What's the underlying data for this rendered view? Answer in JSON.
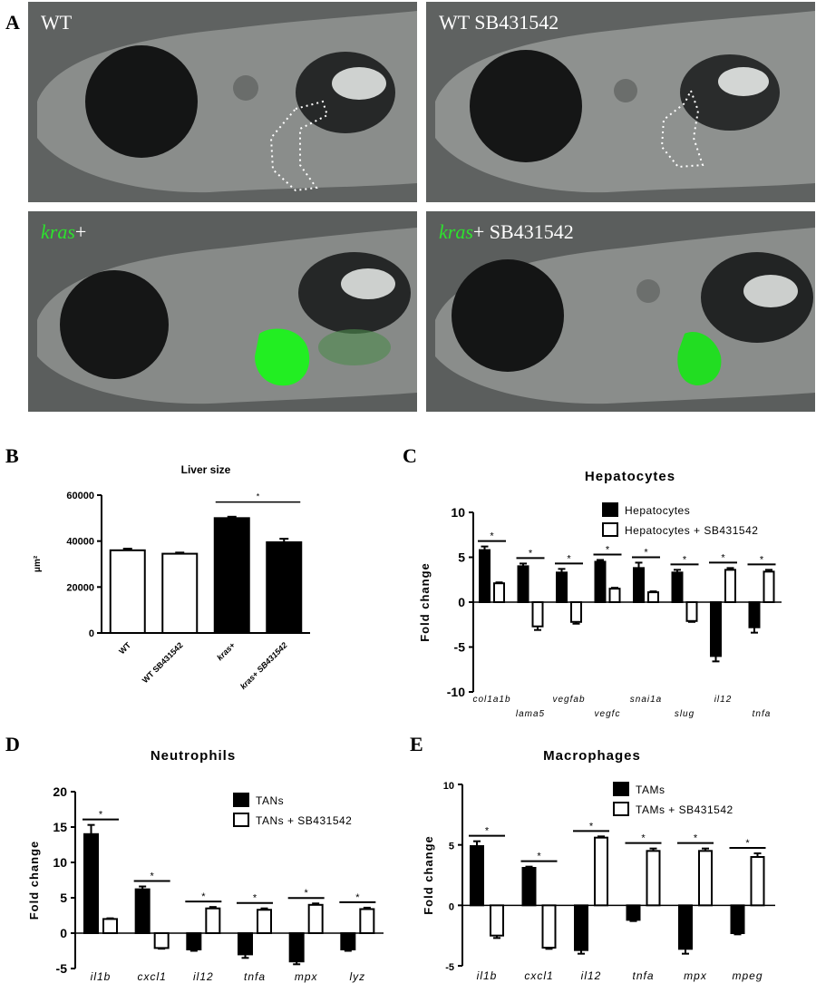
{
  "panels": {
    "A": "A",
    "B": "B",
    "C": "C",
    "D": "D",
    "E": "E"
  },
  "images": [
    {
      "label": "WT",
      "label_green": "",
      "label_rest": "WT"
    },
    {
      "label": "WT SB431542",
      "label_green": "",
      "label_rest": "WT SB431542"
    },
    {
      "label": "kras+",
      "label_green": "kras",
      "label_rest": "+"
    },
    {
      "label": "kras+ SB431542",
      "label_green": "kras",
      "label_rest": "+ SB431542"
    }
  ],
  "chart_data": [
    {
      "id": "B",
      "type": "bar",
      "title": "Liver size",
      "ylabel": "μm²",
      "ylim": [
        0,
        60000
      ],
      "yticks": [
        0,
        20000,
        40000,
        60000
      ],
      "categories": [
        "WT",
        "WT SB431542",
        "kras+",
        "kras+ SB431542"
      ],
      "values": [
        36000,
        34500,
        50000,
        39500
      ],
      "errors": [
        700,
        500,
        600,
        1500
      ],
      "fills": [
        "#ffffff",
        "#ffffff",
        "#000000",
        "#000000"
      ],
      "significance": [
        {
          "between": [
            2,
            3
          ],
          "label": "*"
        }
      ]
    },
    {
      "id": "C",
      "type": "bar",
      "title": "Hepatocytes",
      "ylabel": "Fold change",
      "ylim": [
        -10,
        10
      ],
      "yticks": [
        -10,
        -5,
        0,
        5,
        10
      ],
      "categories": [
        "col1a1b",
        "lama5",
        "vegfab",
        "vegfc",
        "snai1a",
        "slug",
        "il12",
        "tnfa"
      ],
      "series": [
        {
          "name": "Hepatocytes",
          "color": "#000000",
          "values": [
            5.8,
            4.0,
            3.3,
            4.5,
            3.8,
            3.3,
            -6.0,
            -2.8
          ],
          "errors": [
            0.4,
            0.3,
            0.4,
            0.2,
            0.6,
            0.3,
            0.6,
            0.6
          ]
        },
        {
          "name": "Hepatocytes + SB431542",
          "color": "#ffffff",
          "values": [
            2.1,
            -2.7,
            -2.2,
            1.5,
            1.1,
            -2.1,
            3.6,
            3.4
          ],
          "errors": [
            0.1,
            0.4,
            0.2,
            0.1,
            0.1,
            0.1,
            0.2,
            0.2
          ]
        }
      ],
      "significance_label": "*"
    },
    {
      "id": "D",
      "type": "bar",
      "title": "Neutrophils",
      "ylabel": "Fold change",
      "ylim": [
        -5,
        20
      ],
      "yticks": [
        -5,
        0,
        5,
        10,
        15,
        20
      ],
      "categories": [
        "il1b",
        "cxcl1",
        "il12",
        "tnfa",
        "mpx",
        "lyz"
      ],
      "series": [
        {
          "name": "TANs",
          "color": "#000000",
          "values": [
            14.0,
            6.2,
            -2.3,
            -3.0,
            -4.0,
            -2.3
          ],
          "errors": [
            1.3,
            0.4,
            0.2,
            0.5,
            0.4,
            0.2
          ]
        },
        {
          "name": "TANs + SB431542",
          "color": "#ffffff",
          "values": [
            2.0,
            -2.1,
            3.5,
            3.3,
            4.0,
            3.4
          ],
          "errors": [
            0.1,
            0.1,
            0.2,
            0.2,
            0.2,
            0.2
          ]
        }
      ],
      "significance_label": "*"
    },
    {
      "id": "E",
      "type": "bar",
      "title": "Macrophages",
      "ylabel": "Fold change",
      "ylim": [
        -5,
        10
      ],
      "yticks": [
        -5,
        0,
        5,
        10
      ],
      "categories": [
        "il1b",
        "cxcl1",
        "il12",
        "tnfa",
        "mpx",
        "mpeg"
      ],
      "series": [
        {
          "name": "TAMs",
          "color": "#000000",
          "values": [
            4.9,
            3.1,
            -3.7,
            -1.2,
            -3.6,
            -2.3
          ],
          "errors": [
            0.4,
            0.1,
            0.3,
            0.1,
            0.4,
            0.1
          ]
        },
        {
          "name": "TAMs + SB431542",
          "color": "#ffffff",
          "values": [
            -2.5,
            -3.5,
            5.6,
            4.5,
            4.5,
            4.0
          ],
          "errors": [
            0.2,
            0.1,
            0.1,
            0.2,
            0.2,
            0.3
          ]
        }
      ],
      "significance_label": "*"
    }
  ]
}
